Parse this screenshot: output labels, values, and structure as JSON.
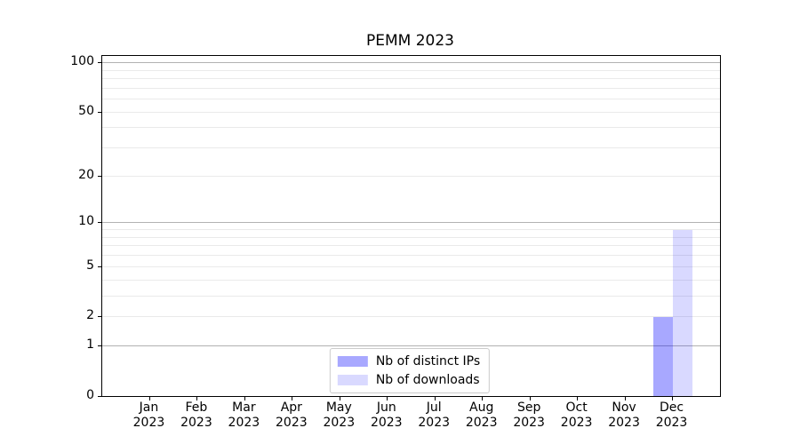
{
  "title": "PEMM 2023",
  "chart_data": {
    "type": "bar",
    "title": "PEMM 2023",
    "categories": [
      "Jan",
      "Feb",
      "Mar",
      "Apr",
      "May",
      "Jun",
      "Jul",
      "Aug",
      "Sep",
      "Oct",
      "Nov",
      "Dec"
    ],
    "category_year": "2023",
    "series": [
      {
        "name": "Nb of distinct IPs",
        "color": "rgba(0,0,255,0.34)",
        "values": [
          0,
          0,
          0,
          0,
          0,
          0,
          0,
          0,
          0,
          0,
          0,
          2
        ]
      },
      {
        "name": "Nb of downloads",
        "color": "rgba(0,0,255,0.15)",
        "values": [
          0,
          0,
          0,
          0,
          0,
          0,
          0,
          0,
          0,
          0,
          0,
          9
        ]
      }
    ],
    "xlabel": "",
    "ylabel": "",
    "yscale": "log10(1+x)",
    "ylim": [
      0,
      110
    ],
    "ytick_values": [
      0,
      1,
      2,
      5,
      10,
      20,
      50,
      100
    ],
    "ytick_labels": [
      "0",
      "1",
      "2",
      "5",
      "10",
      "20",
      "50",
      "100"
    ],
    "major_gridline_values": [
      1,
      10,
      100
    ],
    "minor_gridline_values": [
      2,
      3,
      4,
      5,
      6,
      7,
      8,
      9,
      20,
      30,
      40,
      50,
      60,
      70,
      80,
      90
    ],
    "grid": "on",
    "legend_position": "lower center",
    "colors": {
      "axis": "#000000",
      "grid_major": "#b2b2b2",
      "grid_minor": "#eaeaea",
      "background": "#ffffff"
    }
  },
  "legend": {
    "items": [
      {
        "label": "Nb of distinct IPs"
      },
      {
        "label": "Nb of downloads"
      }
    ]
  }
}
